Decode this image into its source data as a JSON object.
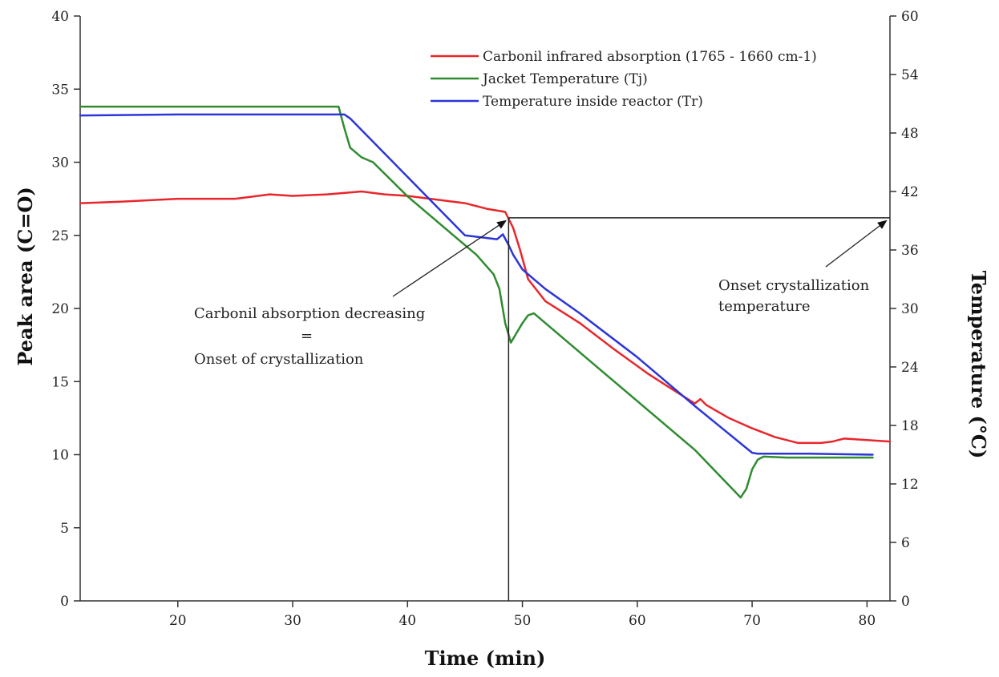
{
  "chart_data": {
    "type": "line",
    "xlabel": "Time (min)",
    "ylabel_left": "Peak area (C=O)",
    "ylabel_right": "Temperature (°C)",
    "xlim": [
      11.5,
      82
    ],
    "ylim_left": [
      0,
      40
    ],
    "ylim_right": [
      0,
      60
    ],
    "x_ticks": [
      20,
      30,
      40,
      50,
      60,
      70,
      80
    ],
    "y_left_ticks": [
      0,
      5,
      10,
      15,
      20,
      25,
      30,
      35,
      40
    ],
    "y_right_ticks": [
      0,
      6,
      12,
      18,
      24,
      30,
      36,
      42,
      48,
      54,
      60
    ],
    "grid": false,
    "legend_position": "top-right",
    "series": [
      {
        "name": "Carbonil  infrared absorption (1765 - 1660 cm-1)",
        "color": "#e8262b",
        "axis": "left",
        "x": [
          11.5,
          15,
          20,
          25,
          28,
          30,
          33,
          36,
          38,
          40,
          43,
          45,
          47,
          48.5,
          49.2,
          49.8,
          50.5,
          52,
          55,
          58,
          61,
          63,
          65,
          65.5,
          66,
          68,
          70,
          72,
          74,
          76,
          77,
          78,
          80,
          82
        ],
        "y": [
          27.2,
          27.3,
          27.5,
          27.5,
          27.8,
          27.7,
          27.8,
          28.0,
          27.8,
          27.7,
          27.4,
          27.2,
          26.8,
          26.6,
          25.5,
          24.0,
          22.0,
          20.5,
          19.0,
          17.2,
          15.5,
          14.5,
          13.5,
          13.8,
          13.4,
          12.5,
          11.8,
          11.2,
          10.8,
          10.8,
          10.9,
          11.1,
          11.0,
          10.9
        ]
      },
      {
        "name": "Jacket Temperature (Tj)",
        "color": "#2e8b2e",
        "axis": "right",
        "x": [
          11.5,
          20,
          30,
          34,
          34.5,
          35,
          36,
          37,
          40,
          44,
          46,
          47.5,
          48,
          48.5,
          49,
          49.5,
          50,
          50.5,
          51,
          55,
          60,
          65,
          69,
          69.5,
          70,
          70.5,
          71,
          73,
          80.5
        ],
        "y": [
          50.7,
          50.7,
          50.7,
          50.7,
          48.5,
          46.5,
          45.5,
          45.0,
          41.5,
          37.5,
          35.5,
          33.5,
          32.0,
          28.5,
          26.5,
          27.5,
          28.5,
          29.3,
          29.5,
          25.5,
          20.5,
          15.5,
          10.6,
          11.5,
          13.5,
          14.5,
          14.8,
          14.7,
          14.7
        ]
      },
      {
        "name": "Temperature inside reactor (Tr)",
        "color": "#2b35d9",
        "axis": "right",
        "x": [
          11.5,
          20,
          30,
          34.5,
          35,
          40,
          45,
          47.8,
          48.3,
          48.8,
          49.2,
          50,
          52,
          55,
          60,
          65,
          70,
          70.5,
          75,
          80.5
        ],
        "y": [
          49.8,
          49.9,
          49.9,
          49.9,
          49.5,
          43.5,
          37.5,
          37.1,
          37.6,
          36.5,
          35.5,
          34.0,
          32.0,
          29.5,
          25.0,
          20.0,
          15.2,
          15.1,
          15.1,
          15.0
        ]
      }
    ],
    "annotations": {
      "left_line1": "Carbonil absorption decreasing",
      "left_line2": "=",
      "left_line3": "Onset of crystallization",
      "right_line1": "Onset crystallization",
      "right_line2": "temperature"
    },
    "onset": {
      "x": 48.8,
      "y_left": 26.2
    }
  }
}
